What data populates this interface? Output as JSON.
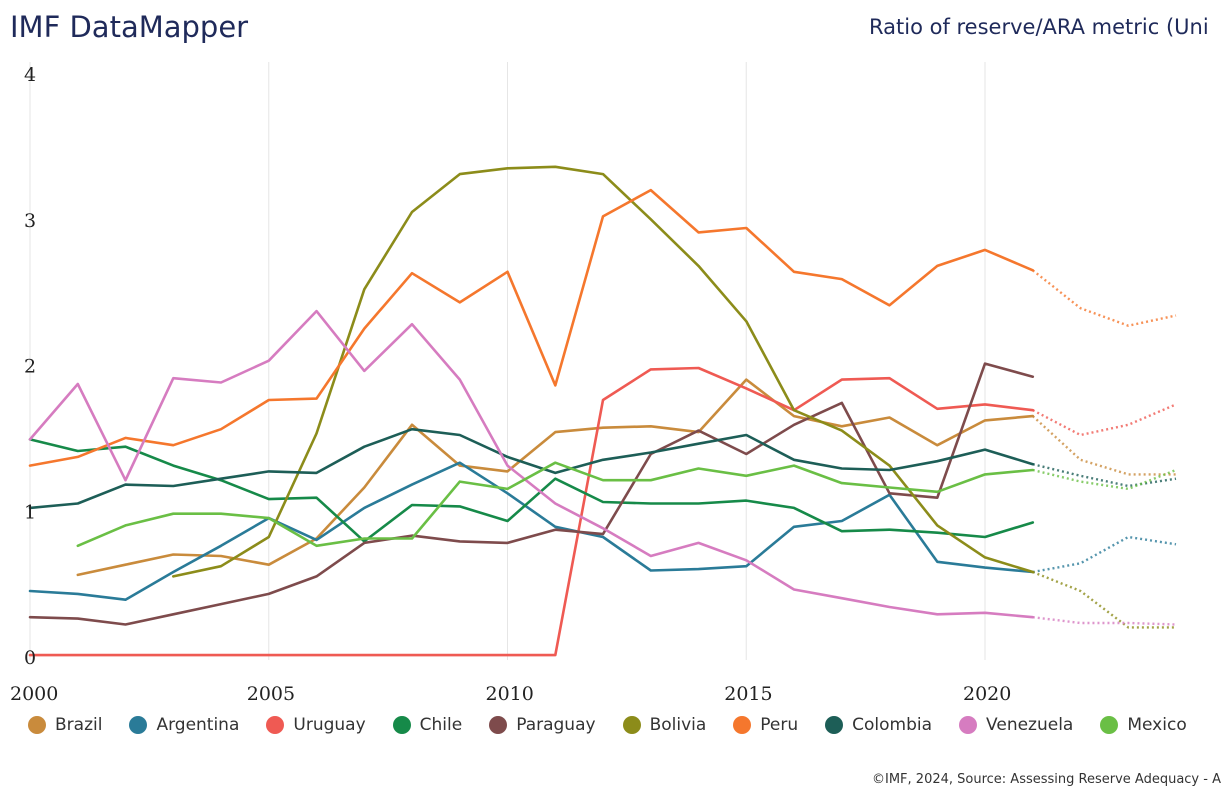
{
  "header": {
    "app_title": "IMF DataMapper",
    "subtitle": "Ratio of reserve/ARA metric (Uni"
  },
  "footer": {
    "source": "©IMF, 2024, Source: Assessing Reserve Adequacy - A"
  },
  "chart_data": {
    "type": "line",
    "title": "Ratio of reserve/ARA metric (Uni",
    "xlabel": "",
    "ylabel": "",
    "xlim": [
      2000,
      2024
    ],
    "ylim": [
      0,
      4
    ],
    "y_ticks": [
      "0",
      "1",
      "2",
      "3",
      "4"
    ],
    "x_ticks": [
      "2000",
      "2005",
      "2010",
      "2015",
      "2020"
    ],
    "x_tick_values": [
      2000,
      2005,
      2010,
      2015,
      2020
    ],
    "y_tick_values": [
      0,
      1,
      2,
      3,
      4
    ],
    "grid": "vertical",
    "legend_position": "bottom",
    "projection_start": 2021,
    "series": [
      {
        "name": "Brazil",
        "color": "#c98b3c",
        "x": [
          2001,
          2002,
          2003,
          2004,
          2005,
          2006,
          2007,
          2008,
          2009,
          2010,
          2011,
          2012,
          2013,
          2014,
          2015,
          2016,
          2017,
          2018,
          2019,
          2020,
          2021,
          2022,
          2023,
          2024
        ],
        "values": [
          0.57,
          0.64,
          0.71,
          0.7,
          0.64,
          0.82,
          1.17,
          1.6,
          1.32,
          1.28,
          1.55,
          1.58,
          1.59,
          1.55,
          1.91,
          1.66,
          1.59,
          1.65,
          1.46,
          1.63,
          1.66,
          1.36,
          1.26,
          1.26
        ]
      },
      {
        "name": "Argentina",
        "color": "#2a7b98",
        "x": [
          2000,
          2001,
          2002,
          2003,
          2004,
          2005,
          2006,
          2007,
          2008,
          2009,
          2010,
          2011,
          2012,
          2013,
          2014,
          2015,
          2016,
          2017,
          2018,
          2019,
          2020,
          2021,
          2022,
          2023,
          2024
        ],
        "values": [
          0.46,
          0.44,
          0.4,
          0.59,
          0.77,
          0.96,
          0.81,
          1.03,
          1.19,
          1.34,
          1.13,
          0.9,
          0.83,
          0.6,
          0.61,
          0.63,
          0.9,
          0.94,
          1.12,
          0.66,
          0.62,
          0.59,
          0.65,
          0.83,
          0.78
        ]
      },
      {
        "name": "Uruguay",
        "color": "#ef5a53",
        "x": [
          2000,
          2001,
          2002,
          2003,
          2004,
          2005,
          2006,
          2007,
          2008,
          2009,
          2010,
          2011,
          2012,
          2013,
          2014,
          2015,
          2016,
          2017,
          2018,
          2019,
          2020,
          2021,
          2022,
          2023,
          2024
        ],
        "values": [
          0.02,
          0.02,
          0.02,
          0.02,
          0.02,
          0.02,
          0.02,
          0.02,
          0.02,
          0.02,
          0.02,
          0.02,
          1.77,
          1.98,
          1.99,
          1.85,
          1.7,
          1.91,
          1.92,
          1.71,
          1.74,
          1.7,
          1.53,
          1.6,
          1.74
        ]
      },
      {
        "name": "Chile",
        "color": "#168a49",
        "x": [
          2000,
          2001,
          2002,
          2003,
          2004,
          2005,
          2006,
          2007,
          2008,
          2009,
          2010,
          2011,
          2012,
          2013,
          2014,
          2015,
          2016,
          2017,
          2018,
          2019,
          2020,
          2021
        ],
        "values": [
          1.5,
          1.42,
          1.45,
          1.32,
          1.22,
          1.09,
          1.1,
          0.8,
          1.05,
          1.04,
          0.94,
          1.23,
          1.07,
          1.06,
          1.06,
          1.08,
          1.03,
          0.87,
          0.88,
          0.86,
          0.83,
          0.93
        ]
      },
      {
        "name": "Paraguay",
        "color": "#7e4b4c",
        "x": [
          2000,
          2001,
          2002,
          2003,
          2004,
          2005,
          2006,
          2007,
          2008,
          2009,
          2010,
          2011,
          2012,
          2013,
          2014,
          2015,
          2016,
          2017,
          2018,
          2019,
          2020,
          2021
        ],
        "values": [
          0.28,
          0.27,
          0.23,
          0.3,
          0.37,
          0.44,
          0.56,
          0.79,
          0.84,
          0.8,
          0.79,
          0.88,
          0.85,
          1.4,
          1.56,
          1.4,
          1.6,
          1.75,
          1.13,
          1.1,
          2.02,
          1.93
        ]
      },
      {
        "name": "Bolivia",
        "color": "#8c8c1a",
        "x": [
          2003,
          2004,
          2005,
          2006,
          2007,
          2008,
          2009,
          2010,
          2011,
          2012,
          2013,
          2014,
          2015,
          2016,
          2017,
          2018,
          2019,
          2020,
          2021,
          2022,
          2023,
          2024
        ],
        "values": [
          0.56,
          0.63,
          0.83,
          1.54,
          2.53,
          3.06,
          3.32,
          3.36,
          3.37,
          3.32,
          3.01,
          2.69,
          2.31,
          1.7,
          1.56,
          1.32,
          0.91,
          0.69,
          0.59,
          0.46,
          0.21,
          0.21
        ]
      },
      {
        "name": "Peru",
        "color": "#f5772d",
        "x": [
          2000,
          2001,
          2002,
          2003,
          2004,
          2005,
          2006,
          2007,
          2008,
          2009,
          2010,
          2011,
          2012,
          2013,
          2014,
          2015,
          2016,
          2017,
          2018,
          2019,
          2020,
          2021,
          2022,
          2023,
          2024
        ],
        "values": [
          1.32,
          1.38,
          1.51,
          1.46,
          1.57,
          1.77,
          1.78,
          2.26,
          2.64,
          2.44,
          2.65,
          1.87,
          3.03,
          3.21,
          2.92,
          2.95,
          2.65,
          2.6,
          2.42,
          2.69,
          2.8,
          2.66,
          2.4,
          2.28,
          2.35
        ]
      },
      {
        "name": "Colombia",
        "color": "#1d5e57",
        "x": [
          2000,
          2001,
          2002,
          2003,
          2004,
          2005,
          2006,
          2007,
          2008,
          2009,
          2010,
          2011,
          2012,
          2013,
          2014,
          2015,
          2016,
          2017,
          2018,
          2019,
          2020,
          2021,
          2022,
          2023,
          2024
        ],
        "values": [
          1.03,
          1.06,
          1.19,
          1.18,
          1.23,
          1.28,
          1.27,
          1.45,
          1.57,
          1.53,
          1.38,
          1.27,
          1.36,
          1.41,
          1.47,
          1.53,
          1.36,
          1.3,
          1.29,
          1.35,
          1.43,
          1.33,
          1.25,
          1.18,
          1.23
        ]
      },
      {
        "name": "Venezuela",
        "color": "#d67cc0",
        "x": [
          2000,
          2001,
          2002,
          2003,
          2004,
          2005,
          2006,
          2007,
          2008,
          2009,
          2010,
          2011,
          2012,
          2013,
          2014,
          2015,
          2016,
          2017,
          2018,
          2019,
          2020,
          2021,
          2022,
          2023,
          2024
        ],
        "values": [
          1.5,
          1.88,
          1.22,
          1.92,
          1.89,
          2.04,
          2.38,
          1.97,
          2.29,
          1.91,
          1.32,
          1.06,
          0.89,
          0.7,
          0.79,
          0.67,
          0.47,
          0.41,
          0.35,
          0.3,
          0.31,
          0.28,
          0.24,
          0.24,
          0.23
        ]
      },
      {
        "name": "Mexico",
        "color": "#6abf45",
        "x": [
          2001,
          2002,
          2003,
          2004,
          2005,
          2006,
          2007,
          2008,
          2009,
          2010,
          2011,
          2012,
          2013,
          2014,
          2015,
          2016,
          2017,
          2018,
          2019,
          2020,
          2021,
          2022,
          2023,
          2024
        ],
        "values": [
          0.77,
          0.91,
          0.99,
          0.99,
          0.96,
          0.77,
          0.82,
          0.82,
          1.21,
          1.16,
          1.34,
          1.22,
          1.22,
          1.3,
          1.25,
          1.32,
          1.2,
          1.17,
          1.14,
          1.26,
          1.29,
          1.21,
          1.16,
          1.29
        ]
      }
    ]
  }
}
